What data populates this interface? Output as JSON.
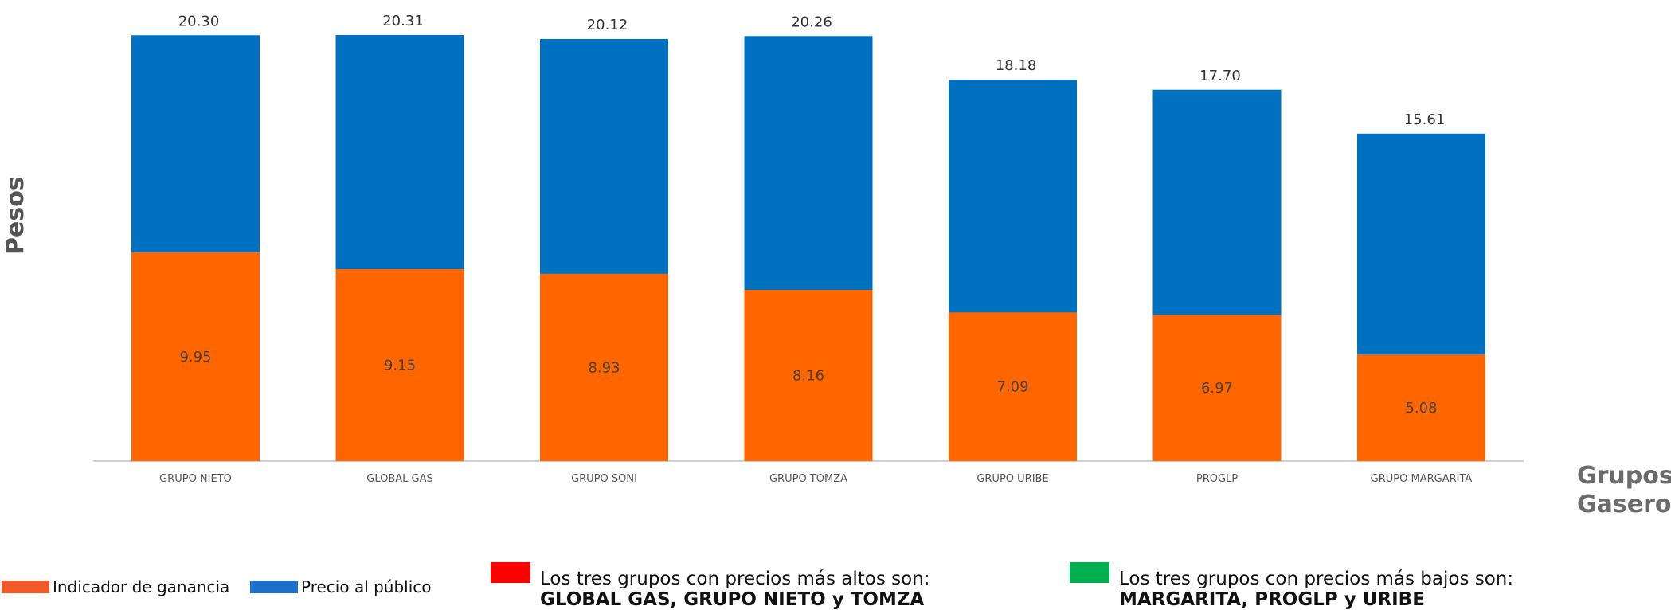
{
  "chart_data": {
    "type": "bar",
    "stacked": true,
    "categories": [
      "GRUPO NIETO",
      "GLOBAL GAS",
      "GRUPO SONI",
      "GRUPO TOMZA",
      "GRUPO URIBE",
      "PROGLP",
      "GRUPO MARGARITA"
    ],
    "series": [
      {
        "name": "Indicador de ganancia",
        "values": [
          9.95,
          9.15,
          8.93,
          8.16,
          7.09,
          6.97,
          5.08
        ],
        "color": "#FF6600"
      },
      {
        "name": "Precio al público",
        "values": [
          20.3,
          20.31,
          20.12,
          20.26,
          18.18,
          17.7,
          15.61
        ],
        "color": "#0070C0"
      }
    ],
    "ylabel": "Pesos",
    "xlabel": "Grupos Gaseros",
    "legend_position": "bottom-left",
    "grid": false
  },
  "legend": {
    "ganancia_label": "Indicador de ganancia",
    "ganancia_color": "#F05A28",
    "precio_label": "Precio al público",
    "precio_color": "#1E6FC8"
  },
  "notes": {
    "high_prefix": "Los tres grupos con precios más altos son:",
    "high_groups": "GLOBAL GAS, GRUPO NIETO y TOMZA",
    "high_color": "#FF0000",
    "low_prefix": "Los tres grupos con precios más bajos son:",
    "low_groups": "MARGARITA, PROGLP y URIBE",
    "low_color": "#00B050"
  },
  "axis": {
    "ylabel": "Pesos",
    "xlabel": "Grupos Gaseros"
  }
}
